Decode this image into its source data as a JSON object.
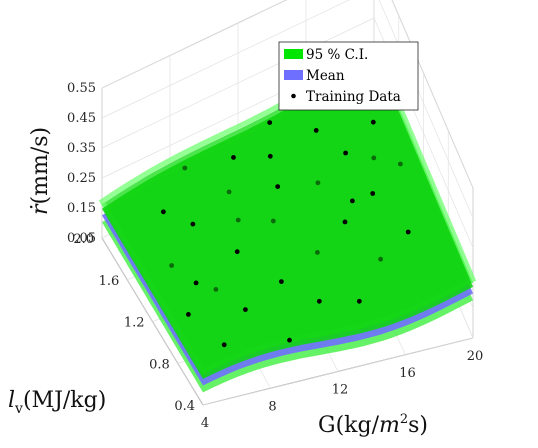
{
  "chart_data": {
    "type": "surface3d",
    "title": "",
    "xlabel": "G(kg/m²s)",
    "ylabel": "l_v(MJ/kg)",
    "zlabel": "ṙ(mm/s)",
    "xlabel_parts": {
      "main": "G(kg/",
      "italic": "m",
      "sup": "2",
      "tail": "s)"
    },
    "ylabel_parts": {
      "italic": "l",
      "sub": "v",
      "tail": "(MJ/kg)"
    },
    "zlabel_parts": {
      "italic": "ṙ",
      "tail": "(mm/s)"
    },
    "xlim": [
      4,
      20
    ],
    "ylim": [
      0.4,
      2.0
    ],
    "zlim": [
      0.05,
      0.55
    ],
    "xticks": [
      "4",
      "8",
      "12",
      "16",
      "20"
    ],
    "yticks": [
      "0.4",
      "0.8",
      "1.2",
      "1.6",
      "2.0"
    ],
    "zticks": [
      "0.05",
      "0.15",
      "0.25",
      "0.35",
      "0.45",
      "0.55"
    ],
    "grid": true,
    "legend_position": "top-right",
    "legend": [
      {
        "label": "95 % C.I.",
        "color": "#00e600"
      },
      {
        "label": "Mean",
        "color": "#6f6fff"
      },
      {
        "label": "Training Data",
        "color": "#000000"
      }
    ],
    "colors": {
      "ci": "#00e600",
      "mean": "#6f6fff",
      "points": "#000000"
    },
    "surface_mean_z_approx": [
      0.12,
      0.25
    ],
    "training_points": [
      [
        5.0,
        0.9,
        0.16
      ],
      [
        5.5,
        1.3,
        0.17
      ],
      [
        6.0,
        0.6,
        0.15
      ],
      [
        6.5,
        1.7,
        0.18
      ],
      [
        7.0,
        1.0,
        0.17
      ],
      [
        7.5,
        1.5,
        0.19
      ],
      [
        8.0,
        0.8,
        0.16
      ],
      [
        8.5,
        1.9,
        0.2
      ],
      [
        9.0,
        1.2,
        0.18
      ],
      [
        9.5,
        0.5,
        0.15
      ],
      [
        10.0,
        1.6,
        0.2
      ],
      [
        10.5,
        0.9,
        0.17
      ],
      [
        11.0,
        1.8,
        0.21
      ],
      [
        11.5,
        1.3,
        0.19
      ],
      [
        12.0,
        0.7,
        0.16
      ],
      [
        12.5,
        1.5,
        0.2
      ],
      [
        13.0,
        1.0,
        0.18
      ],
      [
        13.5,
        1.9,
        0.22
      ],
      [
        14.0,
        0.6,
        0.17
      ],
      [
        14.5,
        1.4,
        0.21
      ],
      [
        15.0,
        1.1,
        0.2
      ],
      [
        15.5,
        1.7,
        0.23
      ],
      [
        16.0,
        0.8,
        0.19
      ],
      [
        16.5,
        1.5,
        0.22
      ],
      [
        17.0,
        1.2,
        0.21
      ],
      [
        17.5,
        1.8,
        0.23
      ],
      [
        18.0,
        0.9,
        0.2
      ],
      [
        18.5,
        1.6,
        0.23
      ],
      [
        19.0,
        1.3,
        0.22
      ],
      [
        19.5,
        1.9,
        0.24
      ],
      [
        6.2,
        1.1,
        0.17
      ],
      [
        9.8,
        1.4,
        0.19
      ],
      [
        12.8,
        1.7,
        0.21
      ],
      [
        15.8,
        1.2,
        0.21
      ],
      [
        17.8,
        1.4,
        0.22
      ]
    ]
  }
}
